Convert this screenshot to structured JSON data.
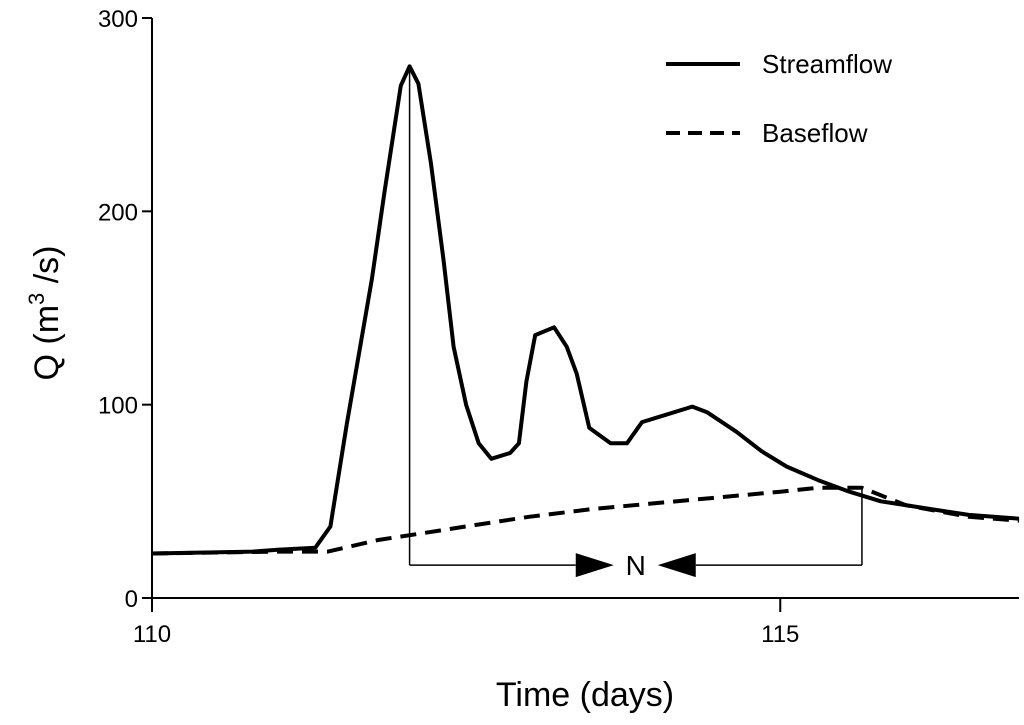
{
  "chart_data": {
    "type": "line",
    "title": "",
    "xlabel": "Time (days)",
    "ylabel_main": "Q (m",
    "ylabel_sup": "3",
    "ylabel_tail": " /s)",
    "xlim": [
      110,
      116.9
    ],
    "ylim": [
      0,
      300
    ],
    "x_ticks": [
      {
        "value": 110,
        "label": "110"
      },
      {
        "value": 115,
        "label": "115"
      }
    ],
    "y_ticks": [
      {
        "value": 0,
        "label": "0"
      },
      {
        "value": 100,
        "label": "100"
      },
      {
        "value": 200,
        "label": "200"
      },
      {
        "value": 300,
        "label": "300"
      }
    ],
    "grid": false,
    "legend_position": "top-right",
    "series": [
      {
        "name": "Streamflow",
        "style": "solid",
        "color": "#000000",
        "points": [
          [
            110.0,
            23
          ],
          [
            110.8,
            24
          ],
          [
            111.0,
            25
          ],
          [
            111.3,
            26
          ],
          [
            111.42,
            37
          ],
          [
            111.55,
            90
          ],
          [
            111.75,
            165
          ],
          [
            111.85,
            210
          ],
          [
            111.98,
            265
          ],
          [
            112.05,
            275
          ],
          [
            112.12,
            266
          ],
          [
            112.22,
            225
          ],
          [
            112.32,
            175
          ],
          [
            112.4,
            130
          ],
          [
            112.5,
            100
          ],
          [
            112.6,
            80
          ],
          [
            112.7,
            72
          ],
          [
            112.85,
            75
          ],
          [
            112.92,
            80
          ],
          [
            112.98,
            112
          ],
          [
            113.05,
            136
          ],
          [
            113.2,
            140
          ],
          [
            113.3,
            130
          ],
          [
            113.38,
            116
          ],
          [
            113.48,
            88
          ],
          [
            113.65,
            80
          ],
          [
            113.78,
            80
          ],
          [
            113.9,
            91
          ],
          [
            114.05,
            94
          ],
          [
            114.3,
            99
          ],
          [
            114.42,
            96
          ],
          [
            114.65,
            86
          ],
          [
            114.85,
            76
          ],
          [
            115.05,
            68
          ],
          [
            115.3,
            61
          ],
          [
            115.55,
            55
          ],
          [
            115.8,
            50
          ],
          [
            116.2,
            46
          ],
          [
            116.5,
            43
          ],
          [
            116.9,
            41
          ]
        ]
      },
      {
        "name": "Baseflow",
        "style": "dashed",
        "color": "#000000",
        "points": [
          [
            110.0,
            23
          ],
          [
            111.0,
            24
          ],
          [
            111.4,
            24
          ],
          [
            111.8,
            30
          ],
          [
            112.2,
            34
          ],
          [
            112.6,
            38
          ],
          [
            113.0,
            42
          ],
          [
            113.5,
            46
          ],
          [
            114.0,
            49
          ],
          [
            114.5,
            52
          ],
          [
            115.0,
            55
          ],
          [
            115.3,
            57
          ],
          [
            115.65,
            57
          ],
          [
            116.0,
            48
          ],
          [
            116.5,
            42
          ],
          [
            116.9,
            40
          ]
        ]
      }
    ],
    "annotation": {
      "label": "N",
      "x_start": 112.05,
      "x_end": 115.65,
      "y_level": 17
    }
  }
}
